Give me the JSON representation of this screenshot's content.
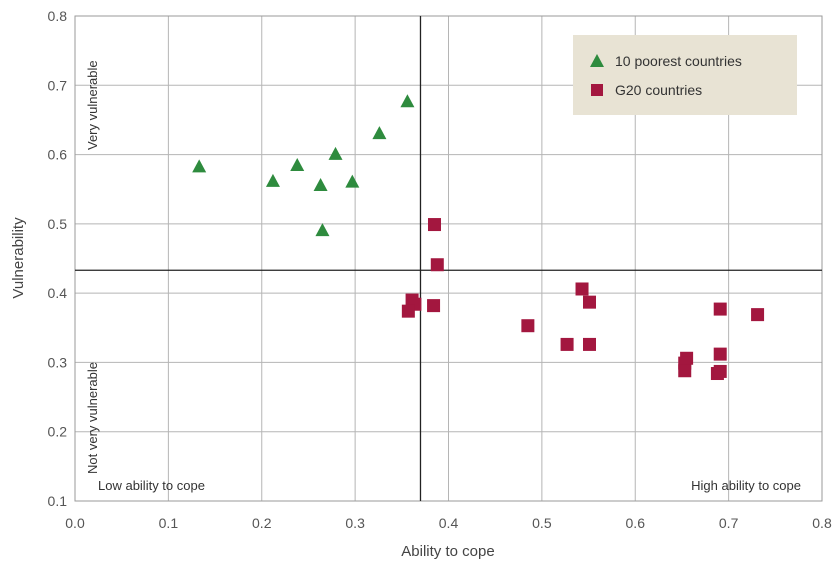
{
  "chart_data": {
    "type": "scatter",
    "xlabel": "Ability to cope",
    "ylabel": "Vulnerability",
    "xlim": [
      0.0,
      0.8
    ],
    "ylim": [
      0.1,
      0.8
    ],
    "xticks": [
      "0.0",
      "0.1",
      "0.2",
      "0.3",
      "0.4",
      "0.5",
      "0.6",
      "0.7",
      "0.8"
    ],
    "yticks": [
      "0.1",
      "0.2",
      "0.3",
      "0.4",
      "0.5",
      "0.6",
      "0.7",
      "0.8"
    ],
    "grid": true,
    "legend_position": "top-right",
    "divider_x": 0.37,
    "divider_y": 0.433,
    "quadrant_labels": {
      "top_left": "Very vulnerable",
      "bottom_left": "Not very vulnerable",
      "bottom_left_corner": "Low ability to cope",
      "bottom_right_corner": "High ability to cope"
    },
    "series": [
      {
        "name": "10 poorest countries",
        "marker": "triangle",
        "color": "#2e8b3e",
        "points": [
          [
            0.133,
            0.583
          ],
          [
            0.212,
            0.562
          ],
          [
            0.238,
            0.585
          ],
          [
            0.263,
            0.556
          ],
          [
            0.279,
            0.601
          ],
          [
            0.297,
            0.561
          ],
          [
            0.326,
            0.631
          ],
          [
            0.356,
            0.677
          ],
          [
            0.265,
            0.491
          ]
        ]
      },
      {
        "name": "G20 countries",
        "marker": "square",
        "color": "#a3173f",
        "points": [
          [
            0.385,
            0.499
          ],
          [
            0.388,
            0.441
          ],
          [
            0.361,
            0.39
          ],
          [
            0.364,
            0.384
          ],
          [
            0.357,
            0.374
          ],
          [
            0.384,
            0.382
          ],
          [
            0.485,
            0.353
          ],
          [
            0.527,
            0.326
          ],
          [
            0.543,
            0.406
          ],
          [
            0.551,
            0.387
          ],
          [
            0.551,
            0.326
          ],
          [
            0.655,
            0.306
          ],
          [
            0.653,
            0.299
          ],
          [
            0.653,
            0.288
          ],
          [
            0.688,
            0.284
          ],
          [
            0.691,
            0.287
          ],
          [
            0.691,
            0.312
          ],
          [
            0.691,
            0.377
          ],
          [
            0.731,
            0.369
          ]
        ]
      }
    ]
  },
  "colors": {
    "legend_bg": "#e8e3d4",
    "grid": "#b5b5b5",
    "divider": "#222222"
  }
}
